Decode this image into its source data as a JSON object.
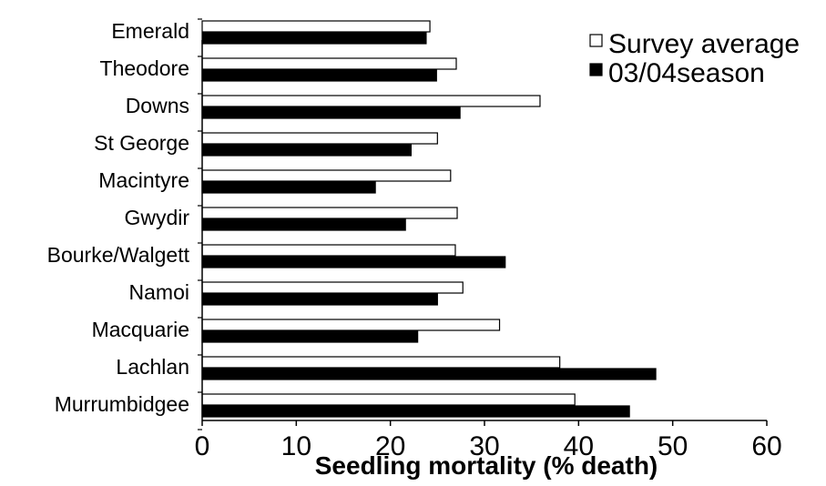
{
  "chart_data": {
    "type": "bar",
    "orientation": "horizontal",
    "categories": [
      "Emerald",
      "Theodore",
      "Downs",
      "St George",
      "Macintyre",
      "Gwydir",
      "Bourke/Walgett",
      "Namoi",
      "Macquarie",
      "Lachlan",
      "Murrumbidgee"
    ],
    "series": [
      {
        "name": "Survey average",
        "color": "#ffffff",
        "values": [
          24.2,
          27,
          35.9,
          25,
          26.4,
          27.1,
          26.9,
          27.7,
          31.6,
          38,
          39.6
        ]
      },
      {
        "name": "03/04season",
        "color": "#000000",
        "values": [
          23.8,
          24.9,
          27.4,
          22.2,
          18.4,
          21.6,
          32.2,
          25,
          22.9,
          48.2,
          45.4
        ]
      }
    ],
    "xlabel": "Seedling mortality (% death)",
    "xlim": [
      0,
      60
    ],
    "xticks": [
      "0",
      "10",
      "20",
      "30",
      "40",
      "50",
      "60"
    ],
    "grid": false,
    "legend_position": "top-right"
  }
}
